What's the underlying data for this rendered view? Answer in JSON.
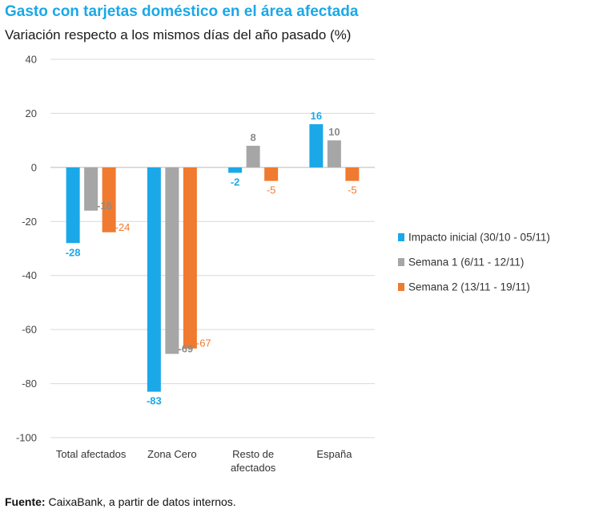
{
  "chart_data": {
    "type": "bar",
    "title": "Gasto con tarjetas doméstico en el área afectada",
    "subtitle": "Variación respecto a los mismos días del año pasado (%)",
    "categories": [
      [
        "Total afectados"
      ],
      [
        "Zona Cero"
      ],
      [
        "Resto de",
        "afectados"
      ],
      [
        "España"
      ]
    ],
    "series": [
      {
        "name": "Impacto inicial (30/10 - 05/11)",
        "color": "#1aa8e8",
        "label_color": "#1aa8e8",
        "label_bold": true,
        "values": [
          -28,
          -83,
          -2,
          16
        ]
      },
      {
        "name": "Semana 1 (6/11 - 12/11)",
        "color": "#a6a6a6",
        "label_color": "#8c8c8c",
        "label_bold": true,
        "values": [
          -16,
          -69,
          8,
          10
        ]
      },
      {
        "name": "Semana 2 (13/11 - 19/11)",
        "color": "#f07a2f",
        "label_color": "#f07a2f",
        "label_bold": false,
        "values": [
          -24,
          -67,
          -5,
          -5
        ]
      }
    ],
    "ylim": [
      -100,
      40
    ],
    "yticks": [
      40,
      20,
      0,
      -20,
      -40,
      -60,
      -80,
      -100
    ],
    "grid": true,
    "legend_position": "right"
  },
  "source": {
    "label": "Fuente:",
    "text": "CaixaBank, a partir de datos internos."
  }
}
